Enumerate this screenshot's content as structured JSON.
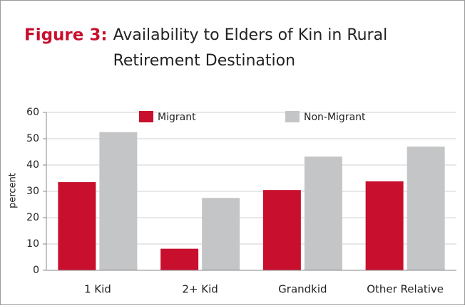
{
  "chart_data": {
    "type": "bar",
    "title_label": "Figure 3:",
    "title": "Availability to Elders of Kin in Rural Retirement Destination",
    "y_label": "percent",
    "categories": [
      "1 Kid",
      "2+ Kid",
      "Grandkid",
      "Other Relative"
    ],
    "series": [
      {
        "name": "Migrant",
        "color": "#c8102e",
        "values": [
          33.5,
          8.2,
          30.5,
          33.8
        ]
      },
      {
        "name": "Non-Migrant",
        "color": "#c4c5c7",
        "values": [
          52.5,
          27.5,
          43.2,
          47
        ]
      }
    ],
    "ylim": [
      0,
      60
    ],
    "yticks": [
      0,
      10,
      20,
      30,
      40,
      50,
      60
    ],
    "grid": true
  }
}
